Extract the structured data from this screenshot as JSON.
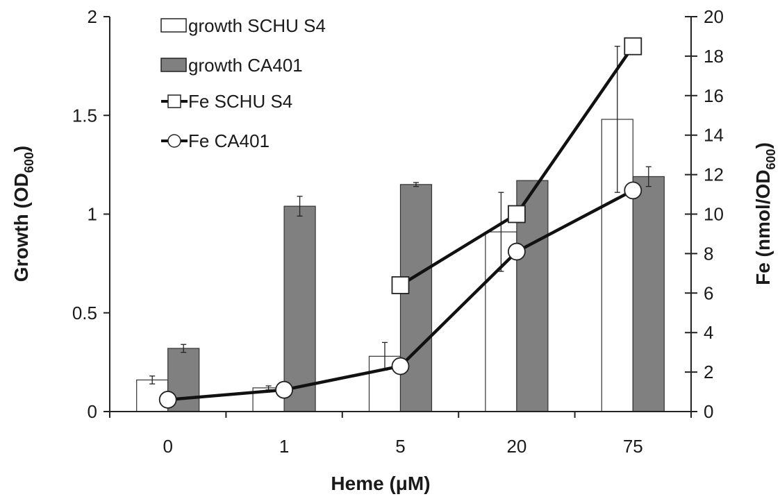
{
  "chart_data": {
    "type": "bar",
    "categories": [
      "0",
      "1",
      "5",
      "20",
      "75"
    ],
    "xlabel": "Heme (μM)",
    "ylabel": "Growth (OD",
    "ylabel_sub": "600",
    "ylabel_end": ")",
    "y2label": "Fe (nmol/OD",
    "y2label_sub": "600",
    "y2label_end": ")",
    "ylim": [
      0,
      2
    ],
    "yticks": [
      "0",
      "0.5",
      "1",
      "1.5",
      "2"
    ],
    "y2lim": [
      0,
      20
    ],
    "y2ticks": [
      "0",
      "2",
      "4",
      "6",
      "8",
      "10",
      "12",
      "14",
      "16",
      "18",
      "20"
    ],
    "series": [
      {
        "name": "growth SCHU S4",
        "kind": "bar",
        "axis": "left",
        "color": "#ffffff",
        "values": [
          0.16,
          0.12,
          0.28,
          0.91,
          1.48
        ],
        "errors": [
          0.02,
          0.01,
          0.07,
          0.2,
          0.37
        ]
      },
      {
        "name": "growth CA401",
        "kind": "bar",
        "axis": "left",
        "color": "#808080",
        "values": [
          0.32,
          1.04,
          1.15,
          1.17,
          1.19
        ],
        "errors": [
          0.02,
          0.05,
          0.01,
          0.0,
          0.05
        ]
      },
      {
        "name": "Fe  SCHU S4",
        "kind": "line",
        "marker": "square",
        "axis": "right",
        "x": [
          "5",
          "20",
          "75"
        ],
        "values": [
          6.4,
          10.0,
          18.5
        ]
      },
      {
        "name": "Fe  CA401",
        "kind": "line",
        "marker": "circle",
        "axis": "right",
        "x": [
          "0",
          "1",
          "5",
          "20",
          "75"
        ],
        "values": [
          0.6,
          1.1,
          2.3,
          8.1,
          11.2
        ]
      }
    ],
    "legend_position": "top-left"
  }
}
